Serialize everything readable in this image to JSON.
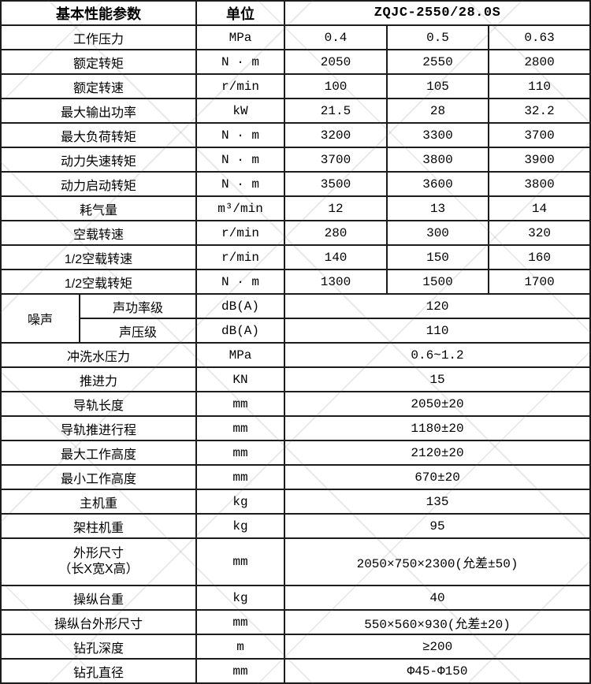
{
  "header": {
    "param_label": "基本性能参数",
    "unit_label": "单位",
    "model": "ZQJC-2550/28.0S"
  },
  "rows": [
    {
      "label": "工作压力",
      "unit": "MPa",
      "values": [
        "0.4",
        "0.5",
        "0.63"
      ]
    },
    {
      "label": "额定转矩",
      "unit": "N · m",
      "values": [
        "2050",
        "2550",
        "2800"
      ]
    },
    {
      "label": "额定转速",
      "unit": "r/min",
      "values": [
        "100",
        "105",
        "110"
      ]
    },
    {
      "label": "最大输出功率",
      "unit": "kW",
      "values": [
        "21.5",
        "28",
        "32.2"
      ]
    },
    {
      "label": "最大负荷转矩",
      "unit": "N · m",
      "values": [
        "3200",
        "3300",
        "3700"
      ]
    },
    {
      "label": "动力失速转矩",
      "unit": "N · m",
      "values": [
        "3700",
        "3800",
        "3900"
      ]
    },
    {
      "label": "动力启动转矩",
      "unit": "N · m",
      "values": [
        "3500",
        "3600",
        "3800"
      ]
    },
    {
      "label": "耗气量",
      "unit": "m³/min",
      "values": [
        "12",
        "13",
        "14"
      ]
    },
    {
      "label": "空载转速",
      "unit": "r/min",
      "values": [
        "280",
        "300",
        "320"
      ]
    },
    {
      "label": "1/2空载转速",
      "unit": "r/min",
      "values": [
        "140",
        "150",
        "160"
      ]
    },
    {
      "label": "1/2空载转矩",
      "unit": "N · m",
      "values": [
        "1300",
        "1500",
        "1700"
      ]
    },
    {
      "group": "噪声",
      "label": "声功率级",
      "unit": "dB(A)",
      "values": [
        "120"
      ]
    },
    {
      "group_cont": true,
      "label": "声压级",
      "unit": "dB(A)",
      "values": [
        "110"
      ]
    },
    {
      "label": "冲洗水压力",
      "unit": "MPa",
      "values": [
        "0.6~1.2"
      ]
    },
    {
      "label": "推进力",
      "unit": "KN",
      "values": [
        "15"
      ]
    },
    {
      "label": "导轨长度",
      "unit": "mm",
      "values": [
        "2050±20"
      ]
    },
    {
      "label": "导轨推进行程",
      "unit": "mm",
      "values": [
        "1180±20"
      ]
    },
    {
      "label": "最大工作高度",
      "unit": "mm",
      "values": [
        "2120±20"
      ]
    },
    {
      "label": "最小工作高度",
      "unit": "mm",
      "values": [
        "670±20"
      ]
    },
    {
      "label": "主机重",
      "unit": "kg",
      "values": [
        "135"
      ]
    },
    {
      "label": "架柱机重",
      "unit": "kg",
      "values": [
        "95"
      ]
    },
    {
      "label": "外形尺寸",
      "label2": "（长X宽X高）",
      "unit": "mm",
      "values": [
        "2050×750×2300(允差±50)"
      ],
      "tall": true
    },
    {
      "label": "操纵台重",
      "unit": "kg",
      "values": [
        "40"
      ]
    },
    {
      "label": "操纵台外形尺寸",
      "unit": "mm",
      "values": [
        "550×560×930(允差±20)"
      ]
    },
    {
      "label": "钻孔深度",
      "unit": "m",
      "values": [
        "≥200"
      ]
    },
    {
      "label": "钻孔直径",
      "unit": "mm",
      "values": [
        "Φ45-Φ150"
      ]
    }
  ],
  "colors": {
    "border": "#1c1c1c",
    "text": "#000000",
    "background": "#ffffff",
    "watermark_line": "#d9d9d9"
  }
}
